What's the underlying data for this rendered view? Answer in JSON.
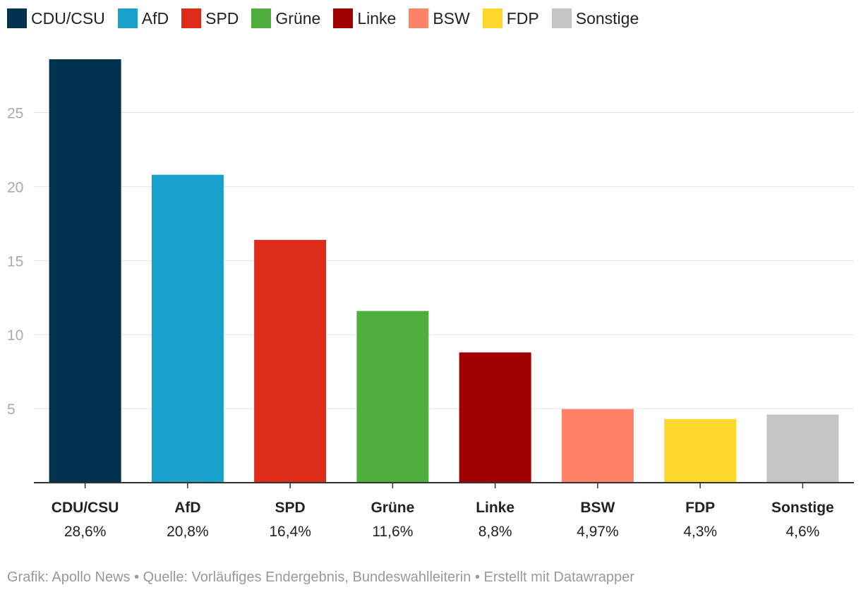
{
  "chart_data": {
    "type": "bar",
    "categories": [
      "CDU/CSU",
      "AfD",
      "SPD",
      "Grüne",
      "Linke",
      "BSW",
      "FDP",
      "Sonstige"
    ],
    "values": [
      28.6,
      20.8,
      16.4,
      11.6,
      8.8,
      4.97,
      4.3,
      4.6
    ],
    "value_labels": [
      "28,6%",
      "20,8%",
      "16,4%",
      "11,6%",
      "8,8%",
      "4,97%",
      "4,3%",
      "4,6%"
    ],
    "colors": [
      "#01324e",
      "#19a1cc",
      "#dd2c19",
      "#50ae3f",
      "#a00000",
      "#fe8268",
      "#fed82c",
      "#c5c5c5"
    ],
    "yticks": [
      5,
      10,
      15,
      20,
      25
    ],
    "ylim": [
      0,
      28.6
    ],
    "grid": true,
    "legend": "top-left",
    "title": "",
    "xlabel": "",
    "ylabel": ""
  },
  "legend": {
    "items": [
      {
        "label": "CDU/CSU",
        "color": "#01324e"
      },
      {
        "label": "AfD",
        "color": "#19a1cc"
      },
      {
        "label": "SPD",
        "color": "#dd2c19"
      },
      {
        "label": "Grüne",
        "color": "#50ae3f"
      },
      {
        "label": "Linke",
        "color": "#a00000"
      },
      {
        "label": "BSW",
        "color": "#fe8268"
      },
      {
        "label": "FDP",
        "color": "#fed82c"
      },
      {
        "label": "Sonstige",
        "color": "#c5c5c5"
      }
    ]
  },
  "footer": {
    "text": "Grafik: Apollo News • Quelle: Vorläufiges Endergebnis, Bundeswahlleiterin • Erstellt mit Datawrapper"
  }
}
